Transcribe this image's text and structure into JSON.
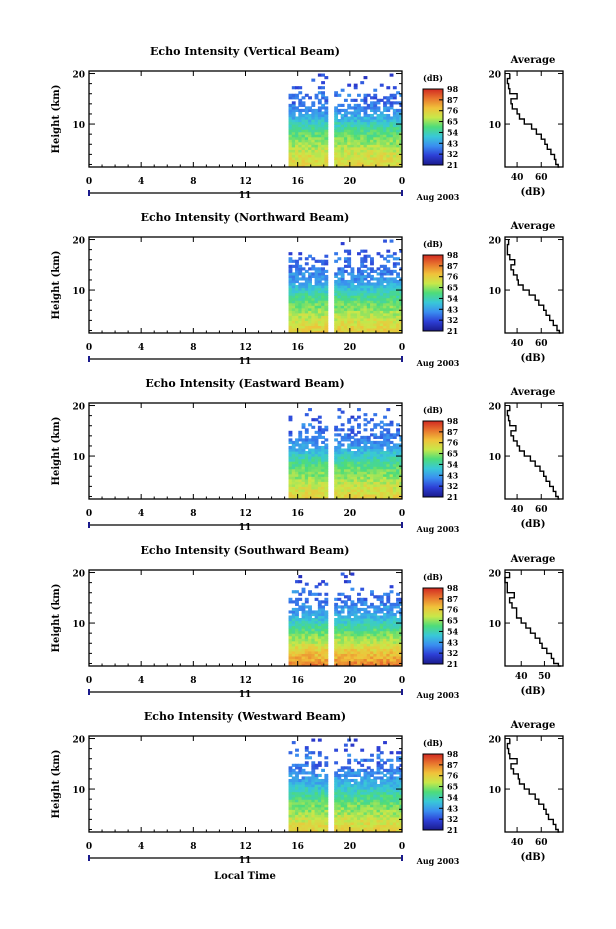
{
  "figure": {
    "x_title": "Local Time",
    "avg_title": "Average",
    "avg_xlabel": "(dB)",
    "ylabel": "Height (km)",
    "colorbar_label": "(dB)",
    "date_label": "Aug 2003",
    "day_label": "11"
  },
  "colors": {
    "scale": [
      "#1a1a8c",
      "#2d3fd6",
      "#3a8ef0",
      "#39c8d8",
      "#4ddc7a",
      "#c8e84a",
      "#f0c23a",
      "#e8762e",
      "#d22a22"
    ]
  },
  "chart_data": [
    {
      "type": "heatmap",
      "title": "Echo Intensity (Vertical Beam)",
      "ylabel": "Height (km)",
      "xlabel": "Local Time",
      "x_ticks": [
        "0",
        "4",
        "8",
        "12",
        "16",
        "20",
        "0"
      ],
      "y_ticks": [
        "10",
        "20"
      ],
      "xlim": [
        0,
        24
      ],
      "ylim": [
        1.5,
        20.5
      ],
      "data_periods": [
        [
          15.3,
          18.2
        ],
        [
          18.8,
          24
        ]
      ],
      "colorbar_ticks": [
        "21",
        "32",
        "43",
        "54",
        "65",
        "76",
        "87",
        "98"
      ],
      "colorbar_range": [
        21,
        98
      ],
      "average": {
        "title": "Average",
        "xlabel": "(dB)",
        "x_ticks": [
          "40",
          "60"
        ],
        "y_ticks": [
          "10",
          "20"
        ],
        "xlim": [
          30,
          78
        ],
        "height": [
          1.5,
          2,
          3,
          4,
          5,
          6,
          7,
          8,
          9,
          10,
          11,
          12,
          13,
          14,
          15,
          16,
          17,
          18,
          19,
          20
        ],
        "value": [
          75,
          74,
          72,
          71,
          68,
          65,
          63,
          60,
          56,
          52,
          46,
          42,
          40,
          36,
          35,
          40,
          34,
          33,
          32,
          34
        ]
      }
    },
    {
      "type": "heatmap",
      "title": "Echo Intensity (Northward Beam)",
      "ylabel": "Height (km)",
      "xlabel": "Local Time",
      "x_ticks": [
        "0",
        "4",
        "8",
        "12",
        "16",
        "20",
        "0"
      ],
      "y_ticks": [
        "10",
        "20"
      ],
      "xlim": [
        0,
        24
      ],
      "ylim": [
        1.5,
        20.5
      ],
      "data_periods": [
        [
          15.3,
          18.2
        ],
        [
          18.8,
          24
        ]
      ],
      "colorbar_ticks": [
        "21",
        "32",
        "43",
        "54",
        "65",
        "76",
        "87",
        "98"
      ],
      "colorbar_range": [
        21,
        98
      ],
      "average": {
        "title": "Average",
        "xlabel": "(dB)",
        "x_ticks": [
          "40",
          "60"
        ],
        "y_ticks": [
          "10",
          "20"
        ],
        "xlim": [
          30,
          78
        ],
        "height": [
          1.5,
          2,
          3,
          4,
          5,
          6,
          7,
          8,
          9,
          10,
          11,
          12,
          13,
          14,
          15,
          16,
          17,
          18,
          19,
          20
        ],
        "value": [
          76,
          75,
          73,
          70,
          67,
          64,
          62,
          58,
          55,
          50,
          45,
          41,
          40,
          37,
          35,
          38,
          34,
          32,
          32,
          33
        ]
      }
    },
    {
      "type": "heatmap",
      "title": "Echo Intensity (Eastward Beam)",
      "ylabel": "Height (km)",
      "xlabel": "Local Time",
      "x_ticks": [
        "0",
        "4",
        "8",
        "12",
        "16",
        "20",
        "0"
      ],
      "y_ticks": [
        "10",
        "20"
      ],
      "xlim": [
        0,
        24
      ],
      "ylim": [
        1.5,
        20.5
      ],
      "data_periods": [
        [
          15.3,
          18.2
        ],
        [
          18.8,
          24
        ]
      ],
      "colorbar_ticks": [
        "21",
        "32",
        "43",
        "54",
        "65",
        "76",
        "87",
        "98"
      ],
      "colorbar_range": [
        21,
        98
      ],
      "average": {
        "title": "Average",
        "xlabel": "(dB)",
        "x_ticks": [
          "40",
          "60"
        ],
        "y_ticks": [
          "10",
          "20"
        ],
        "xlim": [
          30,
          78
        ],
        "height": [
          1.5,
          2,
          3,
          4,
          5,
          6,
          7,
          8,
          9,
          10,
          11,
          12,
          13,
          14,
          15,
          16,
          17,
          18,
          19,
          20
        ],
        "value": [
          75,
          74,
          72,
          70,
          67,
          64,
          62,
          59,
          55,
          51,
          46,
          42,
          40,
          37,
          35,
          39,
          34,
          33,
          32,
          34
        ]
      }
    },
    {
      "type": "heatmap",
      "title": "Echo Intensity (Southward Beam)",
      "ylabel": "Height (km)",
      "xlabel": "Local Time",
      "x_ticks": [
        "0",
        "4",
        "8",
        "12",
        "16",
        "20",
        "0"
      ],
      "y_ticks": [
        "10",
        "20"
      ],
      "xlim": [
        0,
        24
      ],
      "ylim": [
        1.5,
        20.5
      ],
      "data_periods": [
        [
          15.3,
          18.2
        ],
        [
          18.8,
          24
        ]
      ],
      "colorbar_ticks": [
        "21",
        "32",
        "43",
        "54",
        "65",
        "76",
        "87",
        "98"
      ],
      "colorbar_range": [
        21,
        98
      ],
      "average": {
        "title": "Average",
        "xlabel": "(dB)",
        "x_ticks": [
          "40",
          "50"
        ],
        "y_ticks": [
          "10",
          "20"
        ],
        "xlim": [
          33,
          58
        ],
        "height": [
          1.5,
          2,
          3,
          4,
          5,
          6,
          7,
          8,
          9,
          10,
          11,
          12,
          13,
          14,
          15,
          16,
          17,
          18,
          19,
          20
        ],
        "value": [
          57,
          56,
          54,
          53,
          51,
          49,
          48,
          46,
          44,
          42,
          40,
          38,
          38,
          36,
          35,
          37,
          34,
          34,
          33,
          35
        ]
      }
    },
    {
      "type": "heatmap",
      "title": "Echo Intensity (Westward Beam)",
      "ylabel": "Height (km)",
      "xlabel": "Local Time",
      "x_ticks": [
        "0",
        "4",
        "8",
        "12",
        "16",
        "20",
        "0"
      ],
      "y_ticks": [
        "10",
        "20"
      ],
      "xlim": [
        0,
        24
      ],
      "ylim": [
        1.5,
        20.5
      ],
      "data_periods": [
        [
          15.3,
          18.2
        ],
        [
          18.8,
          24
        ]
      ],
      "colorbar_ticks": [
        "21",
        "32",
        "43",
        "54",
        "65",
        "76",
        "87",
        "98"
      ],
      "colorbar_range": [
        21,
        98
      ],
      "average": {
        "title": "Average",
        "xlabel": "(dB)",
        "x_ticks": [
          "40",
          "60"
        ],
        "y_ticks": [
          "10",
          "20"
        ],
        "xlim": [
          30,
          78
        ],
        "height": [
          1.5,
          2,
          3,
          4,
          5,
          6,
          7,
          8,
          9,
          10,
          11,
          12,
          13,
          14,
          15,
          16,
          17,
          18,
          19,
          20
        ],
        "value": [
          75,
          74,
          72,
          70,
          66,
          64,
          62,
          58,
          55,
          50,
          46,
          42,
          41,
          37,
          35,
          40,
          34,
          33,
          32,
          34
        ]
      }
    }
  ]
}
